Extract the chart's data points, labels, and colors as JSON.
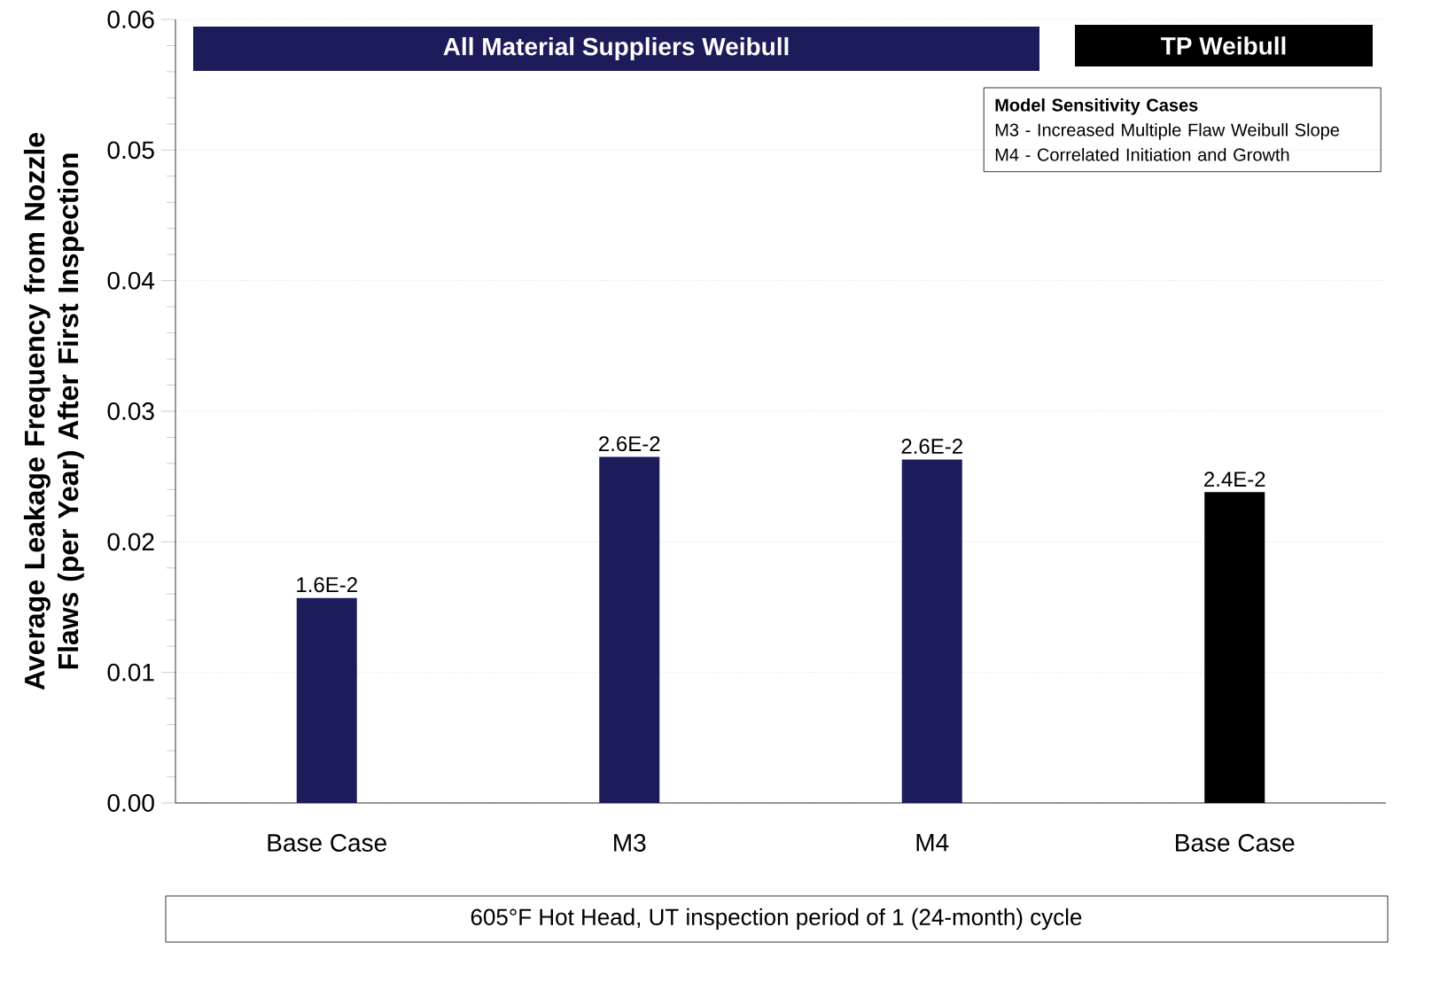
{
  "chart_data": {
    "type": "bar",
    "categories": [
      "Base Case",
      "M3",
      "M4",
      "Base Case"
    ],
    "values": [
      0.0157,
      0.0265,
      0.0263,
      0.0238
    ],
    "value_labels": [
      "1.6E-2",
      "2.6E-2",
      "2.6E-2",
      "2.4E-2"
    ],
    "colors": [
      "#1c1c5a",
      "#1c1c5a",
      "#1c1c5a",
      "#000000"
    ],
    "ylabel": "Average Leakage Frequency from Nozzle Flaws (per Year) After First Inspection",
    "xlabel": "605°F Hot Head, UT inspection period of 1 (24-month) cycle",
    "ylim": [
      0,
      0.06
    ],
    "yticks": [
      {
        "value": 0,
        "label": "0.00"
      },
      {
        "value": 0.01,
        "label": "0.01"
      },
      {
        "value": 0.02,
        "label": "0.02"
      },
      {
        "value": 0.03,
        "label": "0.03"
      },
      {
        "value": 0.04,
        "label": "0.04"
      },
      {
        "value": 0.05,
        "label": "0.05"
      },
      {
        "value": 0.06,
        "label": "0.06"
      }
    ],
    "grid": "y",
    "annotations": [
      "All Material Suppliers Weibull",
      "TP Weibull",
      "**Model Sensitivity Cases**",
      "M3 - Increased Multiple Flaw Weibull Slope",
      "M4 - Correlated Initiation and Growth"
    ]
  }
}
